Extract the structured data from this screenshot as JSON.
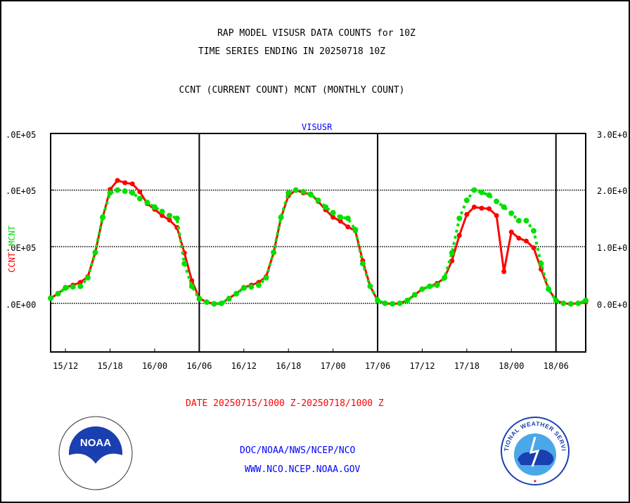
{
  "header": {
    "title1": "RAP MODEL VISUSR DATA COUNTS for 10Z",
    "title2": "TIME SERIES ENDING IN 20250718 10Z",
    "subtitle": "CCNT (CURRENT COUNT) MCNT (MONTHLY COUNT)"
  },
  "footer": {
    "date_range": "DATE 20250715/1000 Z-20250718/1000 Z",
    "org": "DOC/NOAA/NWS/NCEP/NCO",
    "url": "WWW.NCO.NCEP.NOAA.GOV",
    "noaa_logo_text": "NOAA",
    "nws_logo_text": "NATIONAL WEATHER SERVICE"
  },
  "colors": {
    "ccnt": "#ff0000",
    "mcnt": "#00e000",
    "title_blue": "#0000ff"
  },
  "chart_data": {
    "type": "line",
    "title": "VISUSR",
    "ylabel_series": [
      "CCNT",
      "MCNT"
    ],
    "ylim": [
      -86000,
      300000
    ],
    "yticks": [
      0,
      100000,
      200000,
      300000
    ],
    "ytick_labels_left": [
      ".0E+00",
      ".0E+05",
      ".0E+05",
      ".0E+05"
    ],
    "ytick_labels_right": [
      "0.0E+0",
      "1.0E+0",
      "2.0E+0",
      "3.0E+0"
    ],
    "x_start": "15/10",
    "x_hours": 72,
    "xtick_hours": [
      2,
      8,
      14,
      20,
      26,
      32,
      38,
      44,
      50,
      56,
      62,
      68
    ],
    "xtick_labels": [
      "15/12",
      "15/18",
      "16/00",
      "16/06",
      "16/12",
      "16/18",
      "17/00",
      "17/06",
      "17/12",
      "17/18",
      "18/00",
      "18/06"
    ],
    "day_lines_hours": [
      20,
      44,
      68
    ],
    "grid": "horizontal dotted",
    "series": [
      {
        "name": "CCNT",
        "color": "#ff0000",
        "style": "solid",
        "values": [
          9000,
          17000,
          28000,
          32000,
          37000,
          47000,
          89000,
          151000,
          201000,
          217000,
          213000,
          211000,
          197000,
          176000,
          166000,
          155000,
          147000,
          134000,
          89000,
          40000,
          9000,
          2000,
          -1000,
          0,
          9000,
          17000,
          28000,
          32000,
          37000,
          47000,
          89000,
          151000,
          190000,
          200000,
          195000,
          193000,
          180000,
          165000,
          152000,
          145000,
          135000,
          128000,
          75000,
          30000,
          5000,
          0,
          -1000,
          0,
          5000,
          15000,
          25000,
          30000,
          35000,
          45000,
          75000,
          120000,
          157000,
          170000,
          168000,
          167000,
          155000,
          56000,
          126000,
          115000,
          110000,
          98000,
          60000,
          25000,
          5000,
          0,
          -1000,
          0,
          2000
        ]
      },
      {
        "name": "MCNT",
        "color": "#00e000",
        "style": "dotted",
        "values": [
          9000,
          17000,
          27000,
          29000,
          30000,
          45000,
          90000,
          152000,
          195000,
          200000,
          198000,
          195000,
          185000,
          178000,
          170000,
          162000,
          155000,
          150000,
          70000,
          30000,
          8000,
          2000,
          -1000,
          0,
          8000,
          17000,
          27000,
          29000,
          32000,
          45000,
          90000,
          152000,
          195000,
          200000,
          197000,
          192000,
          182000,
          170000,
          160000,
          152000,
          150000,
          130000,
          70000,
          30000,
          5000,
          0,
          -1000,
          0,
          5000,
          15000,
          25000,
          30000,
          32000,
          45000,
          89000,
          150000,
          182000,
          200000,
          196000,
          191000,
          180000,
          170000,
          159000,
          146000,
          146000,
          128000,
          70000,
          25000,
          5000,
          0,
          -1000,
          0,
          5000
        ]
      }
    ]
  }
}
